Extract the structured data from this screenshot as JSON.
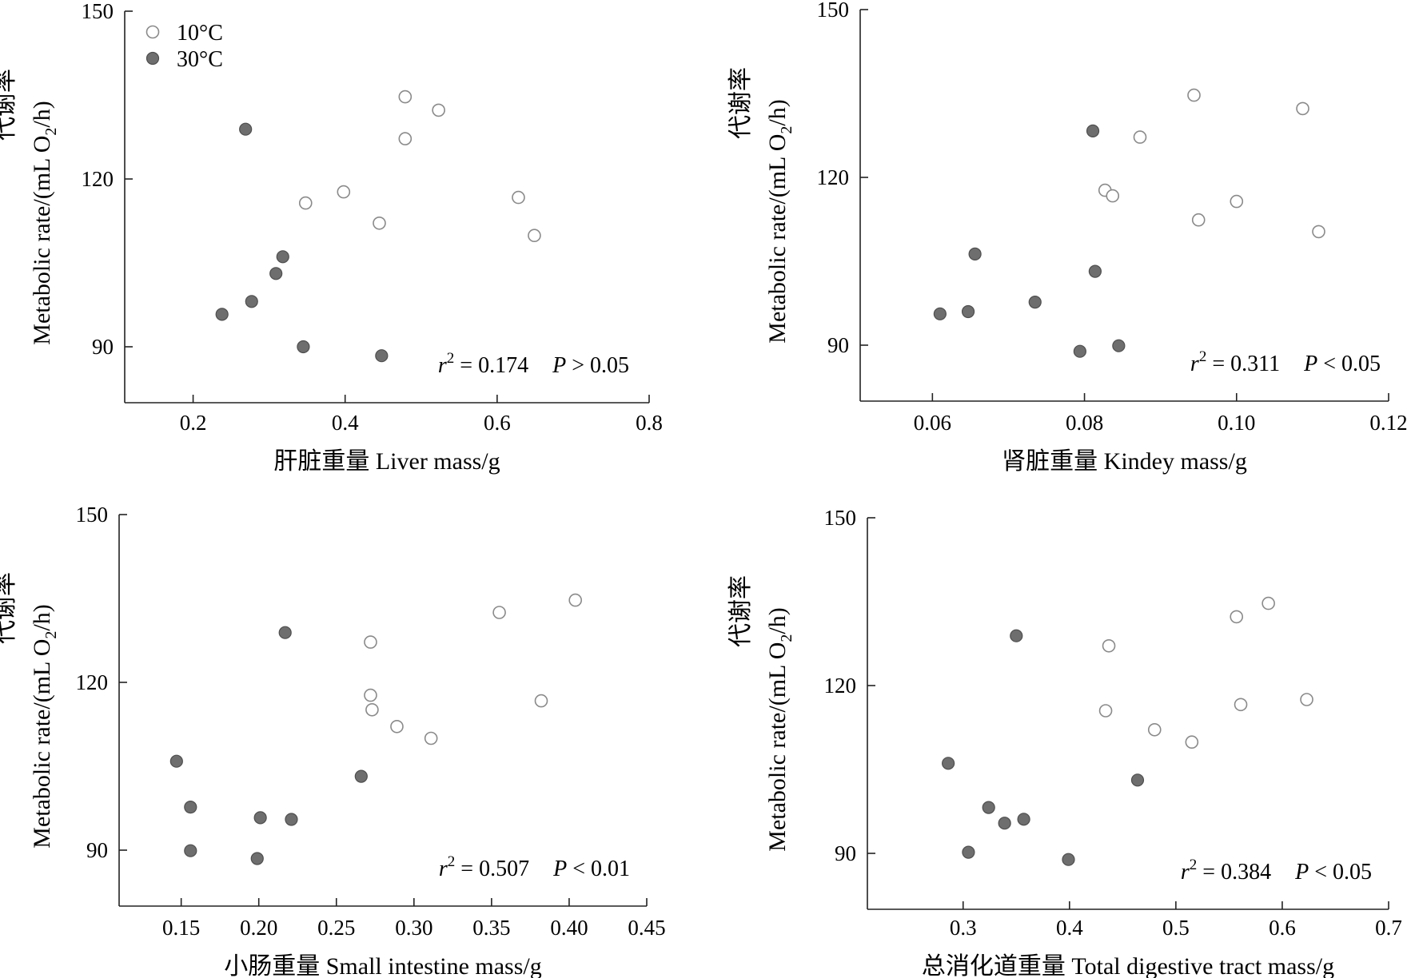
{
  "chart_data": [
    {
      "type": "scatter",
      "title": "",
      "xlabel": "肝脏重量 Liver mass/g",
      "ylabel_cn": "代谢率",
      "ylabel_en": "Metabolic rate/(mL O",
      "ylabel_sub": "2",
      "ylabel_end": "/h)",
      "xlim": [
        0.11,
        0.8
      ],
      "ylim": [
        80,
        150
      ],
      "xticks": [
        0.2,
        0.4,
        0.6,
        0.8
      ],
      "xtick_labels": [
        "0.2",
        "0.4",
        "0.6",
        "0.8"
      ],
      "yticks": [
        90,
        120,
        150
      ],
      "ytick_labels": [
        "90",
        "120",
        "150"
      ],
      "stat": {
        "r2_symbol": "r",
        "r2_sup": "2",
        "r2_value": "= 0.174",
        "p_symbol": "P",
        "p_value": "> 0.05"
      },
      "legend": {
        "position": "top-left",
        "entries": [
          "10°C",
          "30°C"
        ]
      },
      "series": [
        {
          "name": "10°C",
          "marker": "open-circle",
          "x": [
            0.348,
            0.398,
            0.445,
            0.479,
            0.479,
            0.523,
            0.628,
            0.649
          ],
          "y": [
            115.7,
            117.7,
            112.1,
            134.7,
            127.2,
            132.3,
            116.7,
            109.9
          ]
        },
        {
          "name": "30°C",
          "marker": "filled-circle",
          "x": [
            0.238,
            0.269,
            0.277,
            0.309,
            0.318,
            0.345,
            0.448
          ],
          "y": [
            95.8,
            128.9,
            98.1,
            103.1,
            106.1,
            90.0,
            88.4
          ]
        }
      ]
    },
    {
      "type": "scatter",
      "title": "",
      "xlabel": "肾脏重量 Kindey mass/g",
      "ylabel_cn": "代谢率",
      "ylabel_en": "Metabolic rate/(mL O",
      "ylabel_sub": "2",
      "ylabel_end": "/h)",
      "xlim": [
        0.0505,
        0.12
      ],
      "ylim": [
        80,
        150
      ],
      "xticks": [
        0.06,
        0.08,
        0.1,
        0.12
      ],
      "xtick_labels": [
        "0.06",
        "0.08",
        "0.10",
        "0.12"
      ],
      "yticks": [
        90,
        120,
        150
      ],
      "ytick_labels": [
        "90",
        "120",
        "150"
      ],
      "stat": {
        "r2_symbol": "r",
        "r2_sup": "2",
        "r2_value": "= 0.311",
        "p_symbol": "P",
        "p_value": "< 0.05"
      },
      "series": [
        {
          "name": "10°C",
          "marker": "open-circle",
          "x": [
            0.0827,
            0.0837,
            0.0873,
            0.0944,
            0.095,
            0.1,
            0.1087,
            0.1108
          ],
          "y": [
            117.7,
            116.7,
            127.2,
            134.7,
            112.4,
            115.7,
            132.3,
            110.3
          ]
        },
        {
          "name": "30°C",
          "marker": "filled-circle",
          "x": [
            0.061,
            0.0647,
            0.0656,
            0.0735,
            0.0794,
            0.0811,
            0.0814,
            0.0845
          ],
          "y": [
            95.6,
            96.0,
            106.3,
            97.7,
            88.9,
            128.3,
            103.2,
            89.9
          ]
        }
      ]
    },
    {
      "type": "scatter",
      "title": "",
      "xlabel": "小肠重量 Small intestine mass/g",
      "ylabel_cn": "代谢率",
      "ylabel_en": "Metabolic rate/(mL O",
      "ylabel_sub": "2",
      "ylabel_end": "/h)",
      "xlim": [
        0.11,
        0.45
      ],
      "ylim": [
        80,
        150
      ],
      "xticks": [
        0.15,
        0.2,
        0.25,
        0.3,
        0.35,
        0.4,
        0.45
      ],
      "xtick_labels": [
        "0.15",
        "0.20",
        "0.25",
        "0.30",
        "0.35",
        "0.40",
        "0.45"
      ],
      "yticks": [
        90,
        120,
        150
      ],
      "ytick_labels": [
        "90",
        "120",
        "150"
      ],
      "stat": {
        "r2_symbol": "r",
        "r2_sup": "2",
        "r2_value": "= 0.507",
        "p_symbol": "P",
        "p_value": "< 0.01"
      },
      "series": [
        {
          "name": "10°C",
          "marker": "open-circle",
          "x": [
            0.272,
            0.272,
            0.273,
            0.289,
            0.311,
            0.355,
            0.382,
            0.404
          ],
          "y": [
            127.2,
            117.7,
            115.1,
            112.1,
            110.0,
            132.5,
            116.7,
            134.7
          ]
        },
        {
          "name": "30°C",
          "marker": "filled-circle",
          "x": [
            0.147,
            0.156,
            0.156,
            0.199,
            0.201,
            0.217,
            0.221,
            0.266
          ],
          "y": [
            105.9,
            97.7,
            89.9,
            88.5,
            95.8,
            128.9,
            95.5,
            103.2
          ]
        }
      ]
    },
    {
      "type": "scatter",
      "title": "",
      "xlabel": "总消化道重量 Total digestive tract mass/g",
      "ylabel_cn": "代谢率",
      "ylabel_en": "Metabolic rate/(mL O",
      "ylabel_sub": "2",
      "ylabel_end": "/h)",
      "xlim": [
        0.21,
        0.7
      ],
      "ylim": [
        80,
        150
      ],
      "xticks": [
        0.3,
        0.4,
        0.5,
        0.6,
        0.7
      ],
      "xtick_labels": [
        "0.3",
        "0.4",
        "0.5",
        "0.6",
        "0.7"
      ],
      "yticks": [
        90,
        120,
        150
      ],
      "ytick_labels": [
        "90",
        "120",
        "150"
      ],
      "stat": {
        "r2_symbol": "r",
        "r2_sup": "2",
        "r2_value": "= 0.384",
        "p_symbol": "P",
        "p_value": "< 0.05"
      },
      "series": [
        {
          "name": "10°C",
          "marker": "open-circle",
          "x": [
            0.434,
            0.437,
            0.48,
            0.515,
            0.557,
            0.561,
            0.587,
            0.623
          ],
          "y": [
            115.5,
            127.1,
            112.1,
            109.9,
            132.3,
            116.6,
            134.7,
            117.5
          ]
        },
        {
          "name": "30°C",
          "marker": "filled-circle",
          "x": [
            0.286,
            0.305,
            0.324,
            0.339,
            0.35,
            0.357,
            0.399,
            0.464
          ],
          "y": [
            106.1,
            90.2,
            98.2,
            95.4,
            128.9,
            96.1,
            88.9,
            103.1
          ]
        }
      ]
    }
  ]
}
